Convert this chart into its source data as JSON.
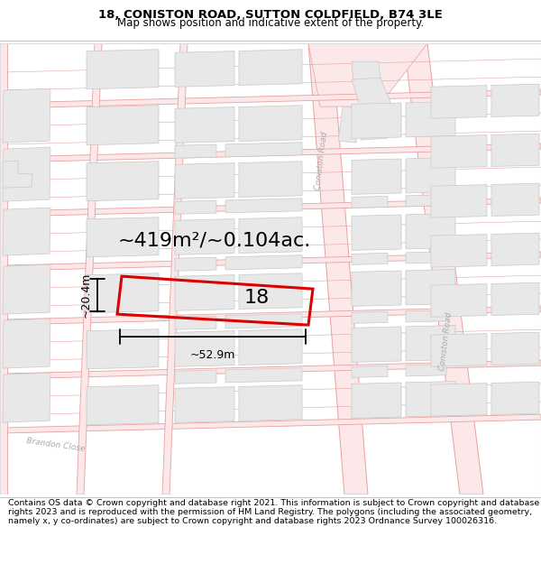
{
  "title_line1": "18, CONISTON ROAD, SUTTON COLDFIELD, B74 3LE",
  "title_line2": "Map shows position and indicative extent of the property.",
  "footer_text": "Contains OS data © Crown copyright and database right 2021. This information is subject to Crown copyright and database rights 2023 and is reproduced with the permission of HM Land Registry. The polygons (including the associated geometry, namely x, y co-ordinates) are subject to Crown copyright and database rights 2023 Ordnance Survey 100026316.",
  "area_label": "~419m²/~0.104ac.",
  "width_label": "~52.9m",
  "height_label": "~20.4m",
  "property_number": "18",
  "bg_color": "#ffffff",
  "map_bg": "#ffffff",
  "road_fill": "#fce8e8",
  "road_line": "#e8a0a0",
  "building_fill": "#e8e8e8",
  "building_line": "#c8c8c8",
  "highlight_color": "#dd0000",
  "text_color": "#000000",
  "road_label_color": "#aaaaaa",
  "title_fontsize": 9.5,
  "subtitle_fontsize": 8.5,
  "area_fontsize": 16,
  "dim_fontsize": 9,
  "property_num_fontsize": 16,
  "footer_fontsize": 6.8
}
